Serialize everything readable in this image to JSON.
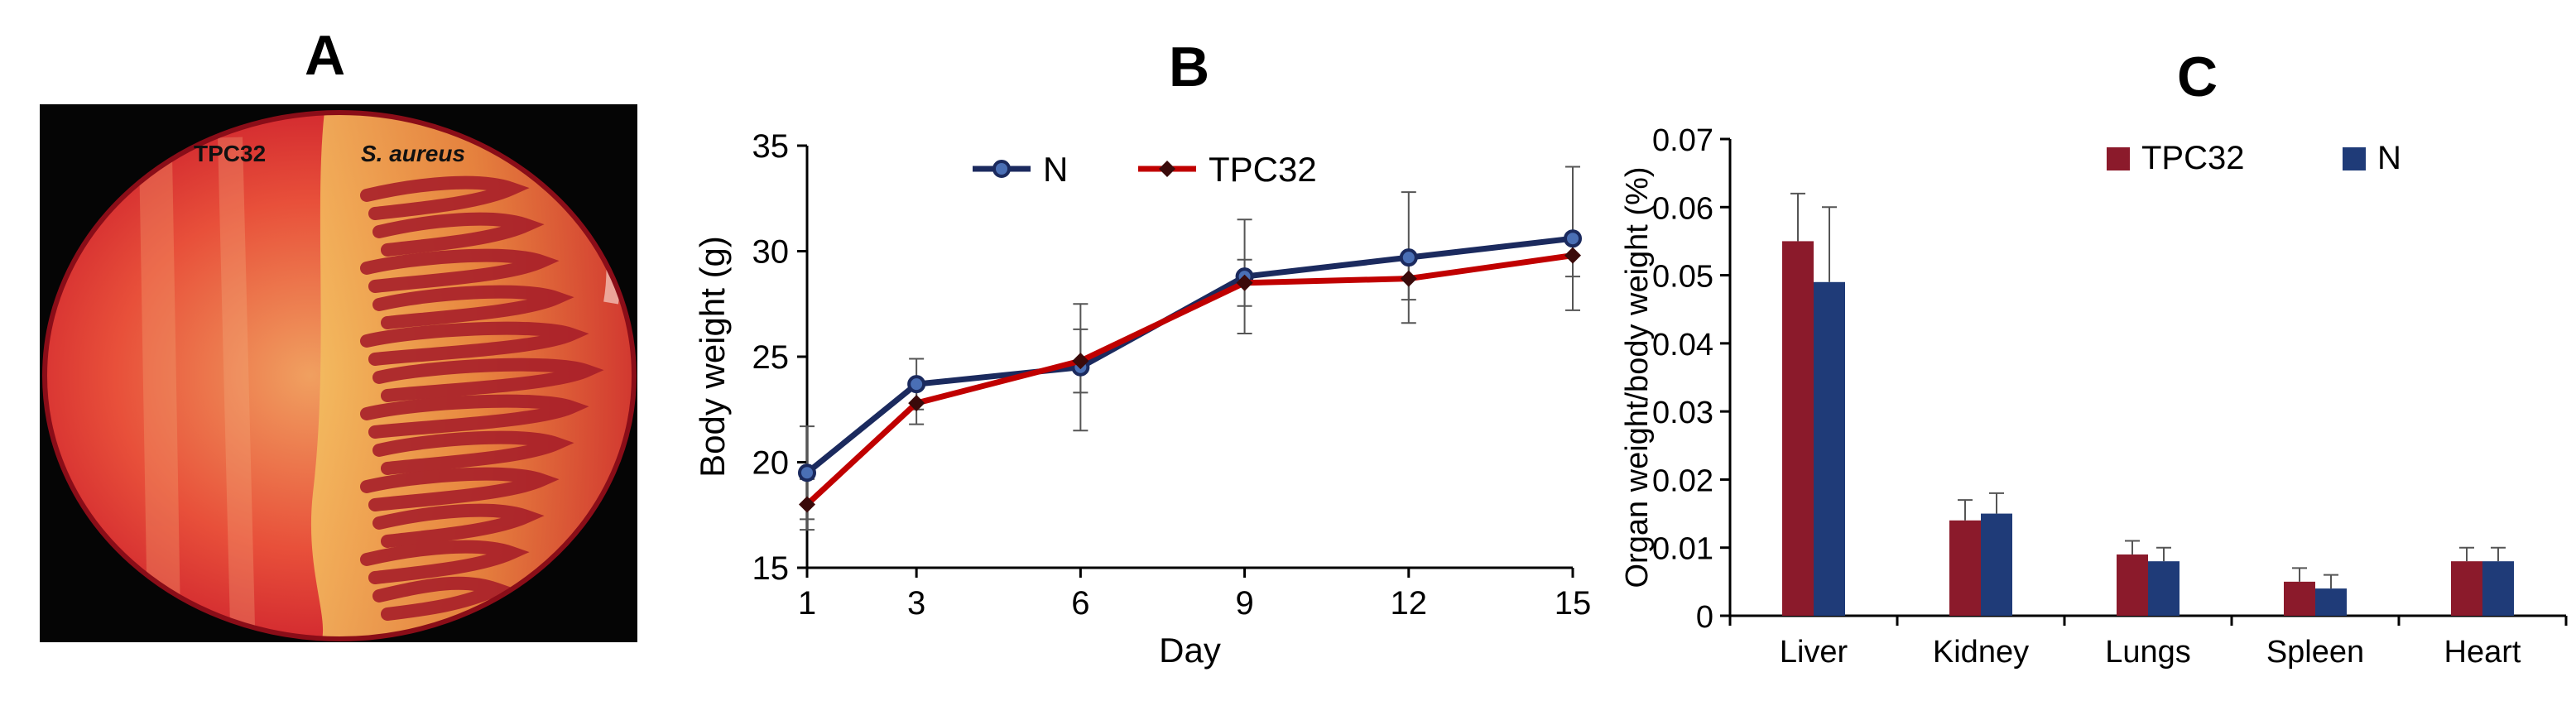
{
  "panels": {
    "a": {
      "letter": "A",
      "plate_labels": [
        "TPC32",
        "S. aureus"
      ]
    },
    "b": {
      "letter": "B"
    },
    "c": {
      "letter": "C"
    }
  },
  "colors": {
    "navy": "#1b2a5e",
    "red": "#c00000",
    "bar_red": "#8b1a2b",
    "bar_blue": "#1f3b78"
  },
  "chart_data": [
    {
      "type": "line",
      "title": "",
      "xlabel": "Day",
      "ylabel": "Body weight (g)",
      "x": [
        1,
        3,
        6,
        9,
        12,
        15
      ],
      "xticks": [
        "1",
        "3",
        "6",
        "9",
        "12",
        "15"
      ],
      "ylim": [
        15,
        35
      ],
      "yticks": [
        "15",
        "20",
        "25",
        "30",
        "35"
      ],
      "legend": "top",
      "series": [
        {
          "name": "N",
          "values": [
            19.5,
            23.7,
            24.5,
            28.8,
            29.7,
            30.6
          ],
          "errors": [
            2.2,
            1.2,
            3.0,
            2.7,
            3.1,
            3.4
          ],
          "color": "#1b2a5e",
          "marker": "circle"
        },
        {
          "name": "TPC32",
          "values": [
            18.0,
            22.8,
            24.8,
            28.5,
            28.7,
            29.8
          ],
          "errors": [
            1.2,
            1.0,
            1.5,
            1.1,
            1.0,
            1.0
          ],
          "color": "#c00000",
          "marker": "diamond"
        }
      ]
    },
    {
      "type": "bar",
      "title": "",
      "xlabel": "",
      "ylabel": "Organ weight/body weight (%)",
      "categories": [
        "Liver",
        "Kidney",
        "Lungs",
        "Spleen",
        "Heart"
      ],
      "ylim": [
        0,
        0.07
      ],
      "yticks": [
        "0",
        "0.01",
        "0.02",
        "0.03",
        "0.04",
        "0.05",
        "0.06",
        "0.07"
      ],
      "legend": "top-right",
      "series": [
        {
          "name": "TPC32",
          "values": [
            0.055,
            0.014,
            0.009,
            0.005,
            0.008
          ],
          "errors": [
            0.007,
            0.003,
            0.002,
            0.002,
            0.002
          ],
          "color": "#8b1a2b"
        },
        {
          "name": "N",
          "values": [
            0.049,
            0.015,
            0.008,
            0.004,
            0.008
          ],
          "errors": [
            0.011,
            0.003,
            0.002,
            0.002,
            0.002
          ],
          "color": "#1f3b78"
        }
      ]
    }
  ]
}
